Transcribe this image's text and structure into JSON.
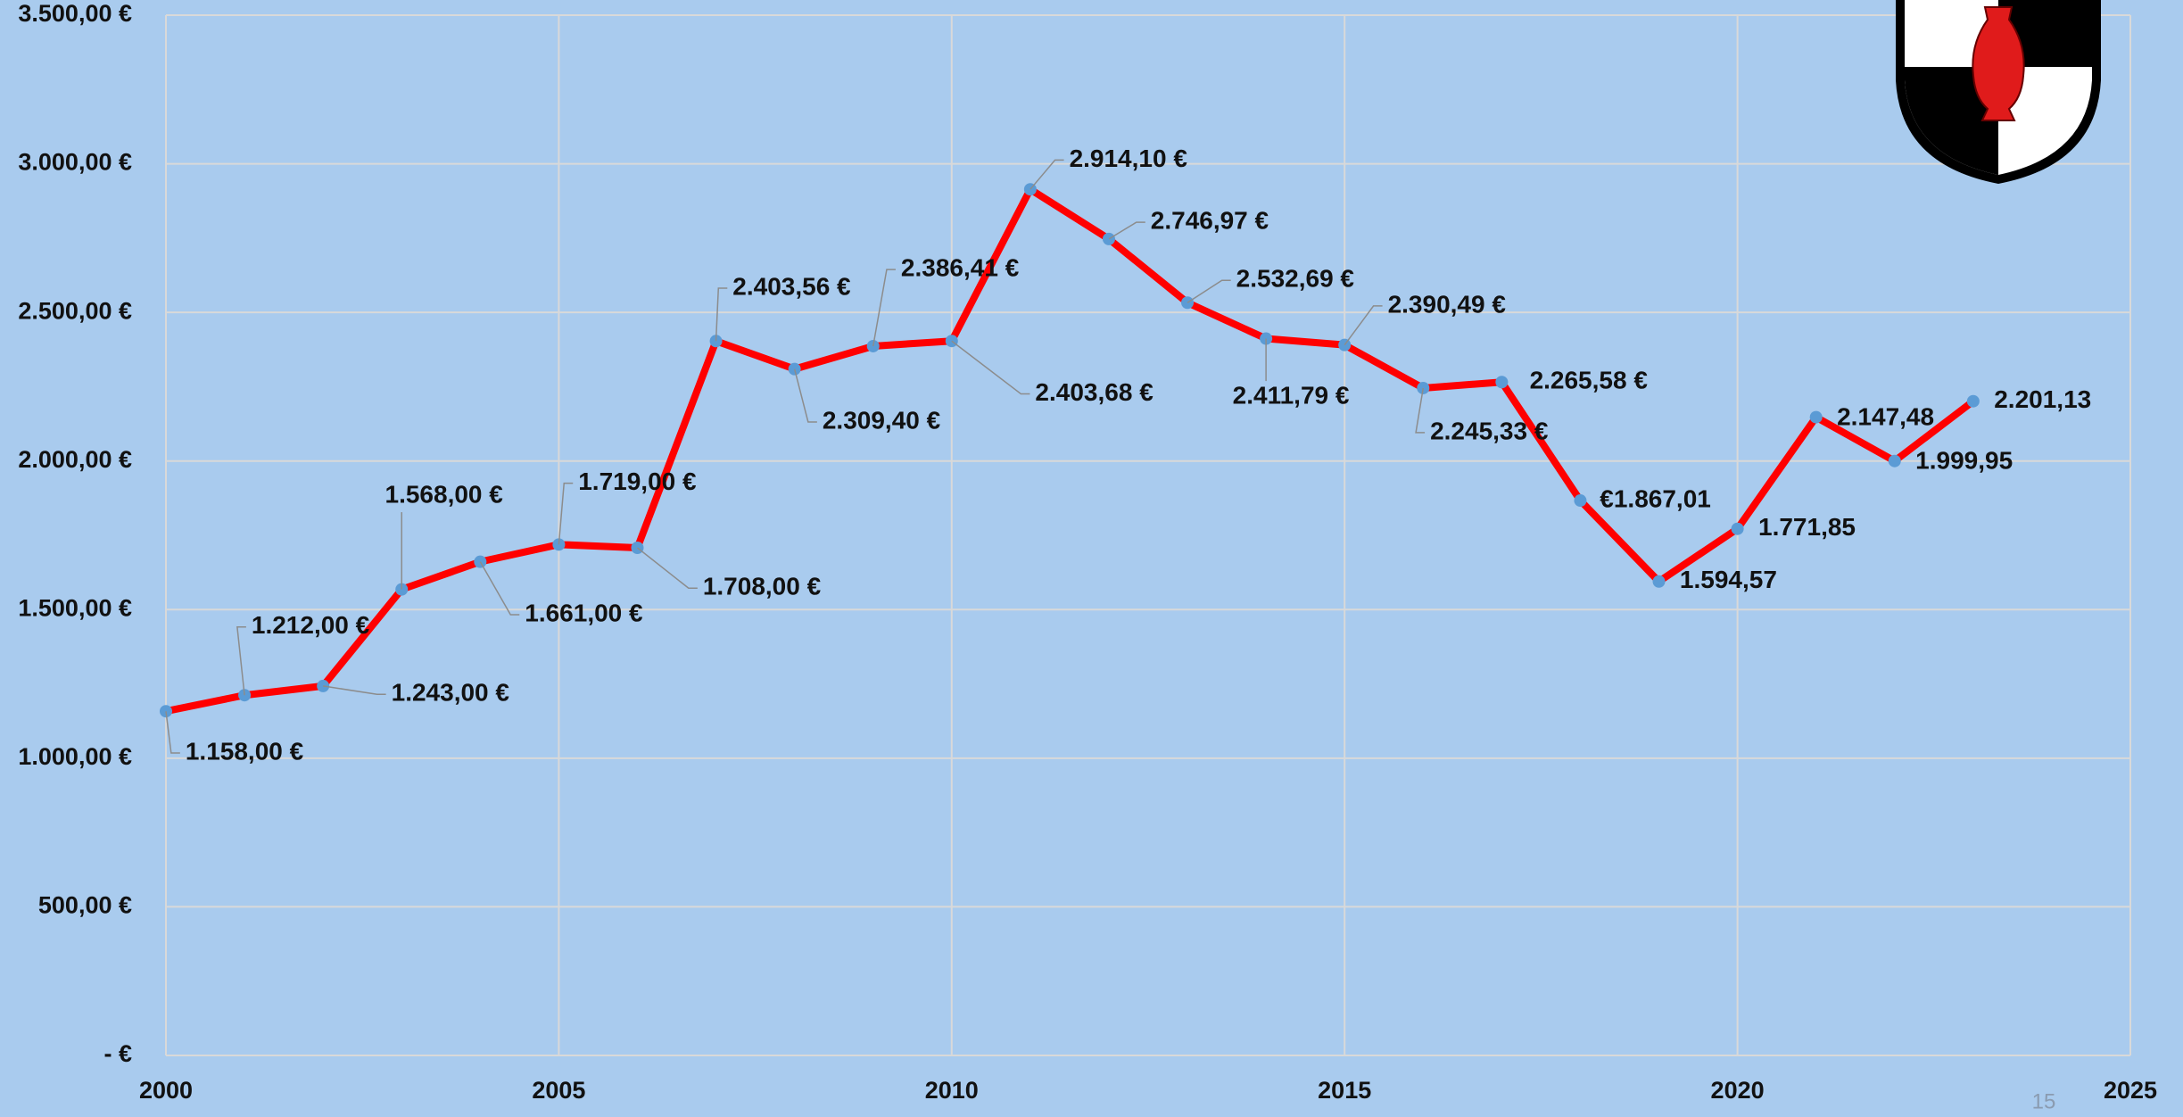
{
  "chart_data": {
    "type": "line",
    "x": [
      2000,
      2001,
      2002,
      2003,
      2004,
      2005,
      2006,
      2007,
      2008,
      2009,
      2010,
      2011,
      2012,
      2013,
      2014,
      2015,
      2016,
      2017,
      2018,
      2019,
      2020,
      2021,
      2022,
      2023
    ],
    "series": [
      {
        "color": "#ff0000",
        "marker_color": "#5b9bd5",
        "values": [
          1158,
          1212,
          1243,
          1568,
          1661,
          1719,
          1708,
          2403.56,
          2309.4,
          2386.41,
          2403.68,
          2914.1,
          2746.97,
          2532.69,
          2411.79,
          2390.49,
          2245.33,
          2265.58,
          1867.01,
          1594.57,
          1771.85,
          2147.48,
          1999.95,
          2201.13
        ],
        "value_labels": [
          "1.158,00 €",
          "1.212,00 €",
          "1.243,00 €",
          "1.568,00 €",
          "1.661,00 €",
          "1.719,00 €",
          "1.708,00 €",
          "2.403,56 €",
          "2.309,40 €",
          "2.386,41 €",
          "2.403,68 €",
          "2.914,10 €",
          "2.746,97 €",
          "2.532,69 €",
          "2.411,79 €",
          "2.390,49 €",
          "2.245,33 €",
          "2.265,58 €",
          "€1.867,01",
          "1.594,57",
          "1.771,85",
          "2.147,48",
          "1.999,95",
          "2.201,13"
        ]
      }
    ],
    "xlim": [
      2000,
      2025
    ],
    "xticks": [
      2000,
      2005,
      2010,
      2015,
      2020,
      2025
    ],
    "ylim": [
      0,
      3500
    ],
    "yticks": [
      {
        "value": 0,
        "label": "-  €"
      },
      {
        "value": 500,
        "label": "500,00 €"
      },
      {
        "value": 1000,
        "label": "1.000,00 €"
      },
      {
        "value": 1500,
        "label": "1.500,00 €"
      },
      {
        "value": 2000,
        "label": "2.000,00 €"
      },
      {
        "value": 2500,
        "label": "2.500,00 €"
      },
      {
        "value": 3000,
        "label": "3.000,00 €"
      },
      {
        "value": 3500,
        "label": "3.500,00 €"
      }
    ],
    "grid": true
  },
  "page_number": "15"
}
